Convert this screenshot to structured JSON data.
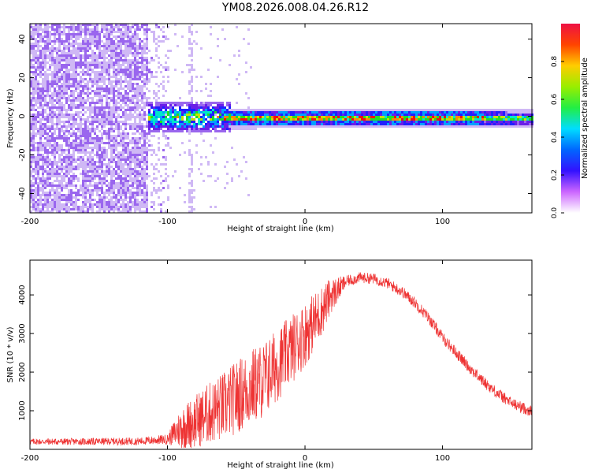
{
  "title": "YM08.2026.008.04.26.R12",
  "colors": {
    "snr_line": "#ee3333",
    "frame": "#000000",
    "colormap": [
      "#ffffff",
      "#cfb8f5",
      "#9a66ee",
      "#6a1ee8",
      "#2020ff",
      "#00a0ff",
      "#00e8c8",
      "#22dd22",
      "#c8e000",
      "#ff8800",
      "#ee1111",
      "#ff2288"
    ]
  },
  "chart_data": [
    {
      "type": "heatmap",
      "name": "spectrogram",
      "xlabel": "Height of straight line (km)",
      "ylabel": "Frequency (Hz)",
      "xlim": [
        -200,
        165
      ],
      "ylim": [
        -50,
        48
      ],
      "xticks": [
        -200,
        -100,
        0,
        100
      ],
      "yticks": [
        -40,
        -20,
        0,
        20,
        40
      ],
      "colorbar": {
        "label": "Normalized spectral amplitude",
        "range": [
          0,
          1
        ],
        "ticks": [
          0.0,
          0.2,
          0.4,
          0.6,
          0.8
        ]
      },
      "regions": [
        {
          "desc": "broadband noise",
          "x_range": [
            -200,
            -115
          ],
          "f_range": [
            -50,
            48
          ],
          "level": 0.12
        },
        {
          "desc": "sparse noise",
          "x_range": [
            -115,
            -100
          ],
          "f_range": [
            -50,
            48
          ],
          "level": 0.06
        },
        {
          "desc": "onset burst",
          "x_range": [
            -115,
            -55
          ],
          "f_range": [
            -8,
            8
          ],
          "level": 0.4
        },
        {
          "desc": "signal band",
          "x_range": [
            -55,
            165
          ],
          "f_range": [
            -4,
            3
          ],
          "level": 0.8
        }
      ]
    },
    {
      "type": "line",
      "name": "snr",
      "xlabel": "Height of straight line (km)",
      "ylabel": "SNR (10 * v/v)",
      "xlim": [
        -200,
        165
      ],
      "ylim": [
        0,
        4900
      ],
      "xticks": [
        -200,
        -100,
        0,
        100
      ],
      "yticks": [
        1000,
        2000,
        3000,
        4000
      ],
      "envelope": {
        "x": [
          -200,
          -160,
          -120,
          -100,
          -90,
          -80,
          -70,
          -60,
          -50,
          -40,
          -30,
          -20,
          -10,
          0,
          10,
          20,
          30,
          40,
          50,
          60,
          70,
          80,
          90,
          100,
          110,
          120,
          130,
          140,
          150,
          160,
          165
        ],
        "mean": [
          200,
          200,
          210,
          260,
          500,
          650,
          850,
          1000,
          1250,
          1500,
          1700,
          2100,
          2500,
          2900,
          3400,
          4000,
          4350,
          4450,
          4420,
          4300,
          4100,
          3800,
          3400,
          2900,
          2500,
          2100,
          1750,
          1450,
          1200,
          1050,
          980
        ],
        "noise": [
          80,
          90,
          100,
          130,
          550,
          700,
          800,
          900,
          950,
          1000,
          1000,
          950,
          900,
          850,
          700,
          450,
          150,
          140,
          140,
          140,
          150,
          150,
          150,
          150,
          150,
          150,
          150,
          150,
          150,
          150,
          150
        ]
      }
    }
  ]
}
